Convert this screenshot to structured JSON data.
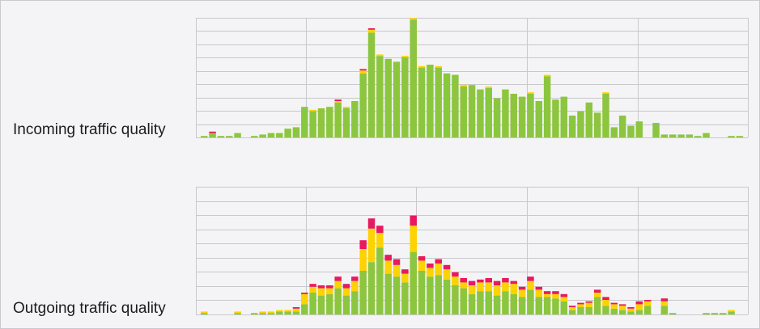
{
  "colors": {
    "good": "#8cc63f",
    "fair": "#ffd200",
    "poor": "#e8195f",
    "grid": "#c8c8cd"
  },
  "chart_data": [
    {
      "type": "bar",
      "stacked": true,
      "title": "Incoming traffic quality",
      "grid": true,
      "series_colors": [
        "#8cc63f",
        "#ffd200",
        "#e8195f"
      ],
      "good": [
        1,
        3,
        1,
        1,
        3,
        0,
        1,
        2,
        3,
        3,
        6,
        7,
        21,
        18,
        20,
        21,
        24,
        20,
        25,
        44,
        72,
        56,
        54,
        52,
        55,
        81,
        48,
        50,
        48,
        44,
        43,
        35,
        36,
        33,
        34,
        27,
        33,
        30,
        28,
        30,
        25,
        42,
        26,
        28,
        15,
        18,
        24,
        17,
        30,
        7,
        15,
        8,
        11,
        0,
        10,
        2,
        2,
        2,
        2,
        1,
        3,
        0,
        0,
        1,
        1
      ],
      "fair": [
        0,
        0,
        0,
        0,
        0,
        0,
        0,
        0,
        0,
        0,
        0,
        0,
        0,
        1,
        0,
        0,
        1,
        1,
        0,
        2,
        2,
        1,
        0,
        0,
        1,
        1,
        1,
        0,
        1,
        0,
        0,
        1,
        0,
        0,
        1,
        0,
        0,
        0,
        0,
        1,
        0,
        1,
        0,
        0,
        0,
        0,
        0,
        0,
        1,
        0,
        0,
        0,
        0,
        0,
        0,
        0,
        0,
        0,
        0,
        0,
        0,
        0,
        0,
        0,
        0
      ],
      "poor": [
        0,
        1,
        0,
        0,
        0,
        0,
        0,
        0,
        0,
        0,
        0,
        0,
        0,
        0,
        0,
        0,
        1,
        0,
        0,
        1,
        1,
        0,
        0,
        0,
        0,
        0,
        0,
        0,
        0,
        0,
        0,
        0,
        0,
        0,
        0,
        0,
        0,
        0,
        0,
        0,
        0,
        0,
        0,
        0,
        0,
        0,
        0,
        0,
        0,
        0,
        0,
        0,
        0,
        0,
        0,
        0,
        0,
        0,
        0,
        0,
        0,
        0,
        0,
        0,
        0
      ]
    },
    {
      "type": "bar",
      "stacked": true,
      "title": "Outgoing traffic quality",
      "grid": true,
      "series_colors": [
        "#8cc63f",
        "#ffd200",
        "#e8195f"
      ],
      "good": [
        1,
        0,
        0,
        0,
        1,
        0,
        1,
        1,
        1,
        2,
        2,
        2,
        7,
        15,
        13,
        14,
        18,
        13,
        16,
        30,
        36,
        46,
        28,
        26,
        22,
        43,
        30,
        26,
        27,
        24,
        20,
        18,
        14,
        16,
        16,
        13,
        16,
        14,
        12,
        17,
        12,
        12,
        11,
        9,
        3,
        5,
        5,
        12,
        6,
        4,
        3,
        2,
        3,
        6,
        0,
        6,
        1,
        0,
        0,
        0,
        1,
        1,
        1,
        2,
        0
      ],
      "fair": [
        1,
        0,
        0,
        0,
        1,
        0,
        0,
        1,
        1,
        1,
        1,
        2,
        7,
        4,
        5,
        4,
        5,
        5,
        7,
        15,
        23,
        10,
        9,
        8,
        6,
        18,
        7,
        6,
        8,
        7,
        6,
        4,
        6,
        6,
        6,
        7,
        6,
        7,
        5,
        6,
        5,
        2,
        3,
        3,
        2,
        2,
        3,
        3,
        4,
        3,
        3,
        2,
        4,
        3,
        0,
        3,
        0,
        0,
        0,
        0,
        0,
        0,
        0,
        1,
        0
      ],
      "poor": [
        0,
        0,
        0,
        0,
        0,
        0,
        0,
        0,
        0,
        0,
        0,
        1,
        1,
        2,
        2,
        2,
        3,
        3,
        3,
        6,
        7,
        5,
        4,
        4,
        3,
        7,
        3,
        3,
        3,
        3,
        3,
        3,
        3,
        2,
        3,
        3,
        3,
        2,
        2,
        3,
        2,
        2,
        2,
        2,
        1,
        1,
        1,
        2,
        2,
        1,
        1,
        1,
        2,
        1,
        0,
        2,
        0,
        0,
        0,
        0,
        0,
        0,
        0,
        0,
        0
      ]
    }
  ]
}
